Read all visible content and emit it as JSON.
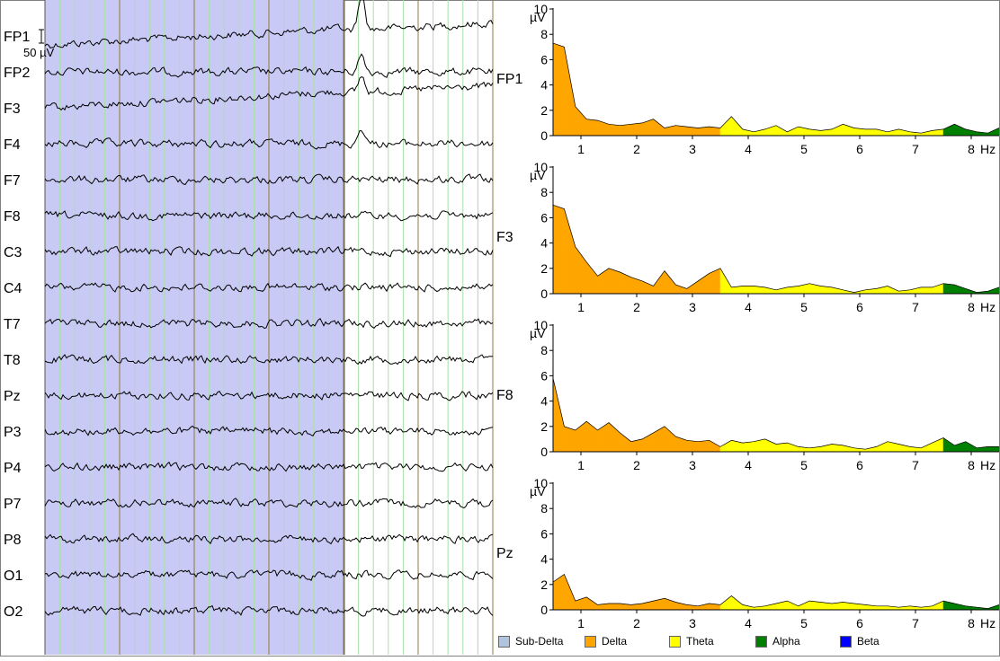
{
  "eeg": {
    "channels": [
      "FP1",
      "FP2",
      "F3",
      "F4",
      "F7",
      "F8",
      "C3",
      "C4",
      "T7",
      "T8",
      "Pz",
      "P3",
      "P4",
      "P7",
      "P8",
      "O1",
      "O2"
    ],
    "scale_label": "50 µV",
    "colors": {
      "selection": "#c9c9f6",
      "trace": "#000000",
      "grid_major": "#8a7c3c",
      "grid_minor": "#a8e0a8"
    }
  },
  "chart_data": [
    {
      "type": "area",
      "channel": "FP1",
      "ylabel": "µV",
      "xlabel": "Hz",
      "xlim": [
        0.5,
        8.5
      ],
      "ylim": [
        0,
        10
      ],
      "xticks": [
        1,
        2,
        3,
        4,
        5,
        6,
        7,
        8
      ],
      "yticks": [
        0,
        2,
        4,
        6,
        8,
        10
      ],
      "x": [
        0.5,
        0.7,
        0.9,
        1.1,
        1.3,
        1.5,
        1.7,
        1.9,
        2.1,
        2.3,
        2.5,
        2.7,
        2.9,
        3.1,
        3.3,
        3.5,
        3.7,
        3.9,
        4.1,
        4.3,
        4.5,
        4.7,
        4.9,
        5.1,
        5.3,
        5.5,
        5.7,
        5.9,
        6.1,
        6.3,
        6.5,
        6.7,
        6.9,
        7.1,
        7.3,
        7.5,
        7.7,
        7.9,
        8.1,
        8.3,
        8.5
      ],
      "values": [
        7.3,
        7.0,
        2.3,
        1.3,
        1.2,
        0.9,
        0.8,
        0.9,
        1.0,
        1.3,
        0.6,
        0.8,
        0.7,
        0.6,
        0.7,
        0.6,
        1.5,
        0.5,
        0.3,
        0.5,
        0.8,
        0.3,
        0.7,
        0.5,
        0.4,
        0.5,
        0.9,
        0.6,
        0.5,
        0.5,
        0.3,
        0.5,
        0.3,
        0.2,
        0.4,
        0.5,
        0.9,
        0.5,
        0.3,
        0.2,
        0.6
      ]
    },
    {
      "type": "area",
      "channel": "F3",
      "ylabel": "µV",
      "xlabel": "Hz",
      "xlim": [
        0.5,
        8.5
      ],
      "ylim": [
        0,
        10
      ],
      "xticks": [
        1,
        2,
        3,
        4,
        5,
        6,
        7,
        8
      ],
      "yticks": [
        0,
        2,
        4,
        6,
        8,
        10
      ],
      "x": [
        0.5,
        0.7,
        0.9,
        1.1,
        1.3,
        1.5,
        1.7,
        1.9,
        2.1,
        2.3,
        2.5,
        2.7,
        2.9,
        3.1,
        3.3,
        3.5,
        3.7,
        3.9,
        4.1,
        4.3,
        4.5,
        4.7,
        4.9,
        5.1,
        5.3,
        5.5,
        5.7,
        5.9,
        6.1,
        6.3,
        6.5,
        6.7,
        6.9,
        7.1,
        7.3,
        7.5,
        7.7,
        7.9,
        8.1,
        8.3,
        8.5
      ],
      "values": [
        7.0,
        6.7,
        3.7,
        2.5,
        1.4,
        2.0,
        1.7,
        1.3,
        1.0,
        0.6,
        1.8,
        0.7,
        0.4,
        1.0,
        1.6,
        2.0,
        0.5,
        0.6,
        0.6,
        0.5,
        0.3,
        0.5,
        0.6,
        0.8,
        0.6,
        0.5,
        0.3,
        0.1,
        0.3,
        0.4,
        0.6,
        0.2,
        0.3,
        0.5,
        0.5,
        0.8,
        0.7,
        0.4,
        0.1,
        0.2,
        0.5
      ]
    },
    {
      "type": "area",
      "channel": "F8",
      "ylabel": "µV",
      "xlabel": "Hz",
      "xlim": [
        0.5,
        8.5
      ],
      "ylim": [
        0,
        10
      ],
      "xticks": [
        1,
        2,
        3,
        4,
        5,
        6,
        7,
        8
      ],
      "yticks": [
        0,
        2,
        4,
        6,
        8,
        10
      ],
      "x": [
        0.5,
        0.7,
        0.9,
        1.1,
        1.3,
        1.5,
        1.7,
        1.9,
        2.1,
        2.3,
        2.5,
        2.7,
        2.9,
        3.1,
        3.3,
        3.5,
        3.7,
        3.9,
        4.1,
        4.3,
        4.5,
        4.7,
        4.9,
        5.1,
        5.3,
        5.5,
        5.7,
        5.9,
        6.1,
        6.3,
        6.5,
        6.7,
        6.9,
        7.1,
        7.3,
        7.5,
        7.7,
        7.9,
        8.1,
        8.3,
        8.5
      ],
      "values": [
        5.8,
        2.0,
        1.7,
        2.4,
        1.7,
        2.3,
        1.5,
        0.8,
        1.0,
        1.5,
        2.0,
        1.2,
        0.9,
        0.8,
        0.9,
        0.4,
        0.9,
        0.7,
        0.8,
        1.0,
        0.6,
        0.7,
        0.4,
        0.3,
        0.4,
        0.6,
        0.5,
        0.3,
        0.2,
        0.4,
        0.8,
        0.6,
        0.4,
        0.3,
        0.7,
        1.1,
        0.5,
        0.8,
        0.3,
        0.4,
        0.4
      ]
    },
    {
      "type": "area",
      "channel": "Pz",
      "ylabel": "µV",
      "xlabel": "Hz",
      "xlim": [
        0.5,
        8.5
      ],
      "ylim": [
        0,
        10
      ],
      "xticks": [
        1,
        2,
        3,
        4,
        5,
        6,
        7,
        8
      ],
      "yticks": [
        0,
        2,
        4,
        6,
        8,
        10
      ],
      "x": [
        0.5,
        0.7,
        0.9,
        1.1,
        1.3,
        1.5,
        1.7,
        1.9,
        2.1,
        2.3,
        2.5,
        2.7,
        2.9,
        3.1,
        3.3,
        3.5,
        3.7,
        3.9,
        4.1,
        4.3,
        4.5,
        4.7,
        4.9,
        5.1,
        5.3,
        5.5,
        5.7,
        5.9,
        6.1,
        6.3,
        6.5,
        6.7,
        6.9,
        7.1,
        7.3,
        7.5,
        7.7,
        7.9,
        8.1,
        8.3,
        8.5
      ],
      "values": [
        2.2,
        2.8,
        0.7,
        1.0,
        0.4,
        0.5,
        0.5,
        0.4,
        0.5,
        0.7,
        0.9,
        0.6,
        0.4,
        0.3,
        0.5,
        0.4,
        1.1,
        0.4,
        0.2,
        0.3,
        0.5,
        0.7,
        0.3,
        0.7,
        0.6,
        0.5,
        0.6,
        0.5,
        0.4,
        0.3,
        0.3,
        0.2,
        0.3,
        0.2,
        0.3,
        0.7,
        0.5,
        0.3,
        0.2,
        0.1,
        0.4
      ]
    }
  ],
  "bands": [
    {
      "name": "Sub-Delta",
      "color": "#b0c4de",
      "from": 0.0,
      "to": 0.5
    },
    {
      "name": "Delta",
      "color": "#ffa500",
      "from": 0.5,
      "to": 3.5
    },
    {
      "name": "Theta",
      "color": "#ffff00",
      "from": 3.5,
      "to": 7.5
    },
    {
      "name": "Alpha",
      "color": "#008000",
      "from": 7.5,
      "to": 12.0
    },
    {
      "name": "Beta",
      "color": "#0000ff",
      "from": 12.0,
      "to": 30.0
    }
  ]
}
